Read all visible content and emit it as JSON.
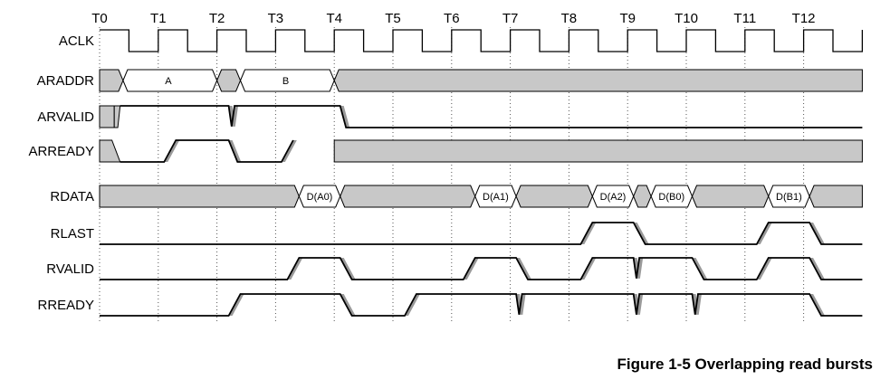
{
  "figure": {
    "caption": "Figure 1-5 Overlapping read bursts"
  },
  "time_markers": [
    "T0",
    "T1",
    "T2",
    "T3",
    "T4",
    "T5",
    "T6",
    "T7",
    "T8",
    "T9",
    "T10",
    "T11",
    "T12"
  ],
  "signals": [
    {
      "name": "ACLK",
      "type": "clock"
    },
    {
      "name": "ARADDR",
      "type": "bus",
      "segments": [
        {
          "from": 0,
          "to": 0.4,
          "kind": "invalid"
        },
        {
          "from": 0.4,
          "to": 2.0,
          "kind": "valid",
          "label": "A"
        },
        {
          "from": 2.0,
          "to": 2.4,
          "kind": "invalid"
        },
        {
          "from": 2.4,
          "to": 4.0,
          "kind": "valid",
          "label": "B"
        },
        {
          "from": 4.0,
          "to": 13.0,
          "kind": "invalid"
        }
      ]
    },
    {
      "name": "ARVALID",
      "type": "wave",
      "points": [
        [
          0,
          "x"
        ],
        [
          0.25,
          "x"
        ],
        [
          0.35,
          1
        ],
        [
          2.2,
          1
        ],
        [
          2.25,
          0.05
        ],
        [
          2.3,
          1
        ],
        [
          4.1,
          1
        ],
        [
          4.2,
          0
        ],
        [
          13,
          0
        ]
      ]
    },
    {
      "name": "ARREADY",
      "type": "wave",
      "points": [
        [
          0,
          "x"
        ],
        [
          0.35,
          0
        ],
        [
          1.1,
          0
        ],
        [
          1.3,
          1
        ],
        [
          2.2,
          1
        ],
        [
          2.35,
          0
        ],
        [
          3.1,
          0
        ],
        [
          3.3,
          1
        ],
        [
          4.0,
          "x"
        ],
        [
          13,
          "x"
        ]
      ]
    },
    {
      "name": "RDATA",
      "type": "bus",
      "segments": [
        {
          "from": 0,
          "to": 3.4,
          "kind": "invalid"
        },
        {
          "from": 3.4,
          "to": 4.1,
          "kind": "valid",
          "label": "D(A0)"
        },
        {
          "from": 4.1,
          "to": 6.4,
          "kind": "invalid"
        },
        {
          "from": 6.4,
          "to": 7.1,
          "kind": "valid",
          "label": "D(A1)"
        },
        {
          "from": 7.1,
          "to": 8.4,
          "kind": "invalid"
        },
        {
          "from": 8.4,
          "to": 9.1,
          "kind": "valid",
          "label": "D(A2)"
        },
        {
          "from": 9.1,
          "to": 9.4,
          "kind": "invalid"
        },
        {
          "from": 9.4,
          "to": 10.1,
          "kind": "valid",
          "label": "D(B0)"
        },
        {
          "from": 10.1,
          "to": 11.4,
          "kind": "invalid"
        },
        {
          "from": 11.4,
          "to": 12.1,
          "kind": "valid",
          "label": "D(B1)"
        },
        {
          "from": 12.1,
          "to": 13.0,
          "kind": "invalid"
        }
      ]
    },
    {
      "name": "RLAST",
      "type": "wave",
      "points": [
        [
          0,
          0
        ],
        [
          8.2,
          0
        ],
        [
          8.4,
          1
        ],
        [
          9.1,
          1
        ],
        [
          9.3,
          0
        ],
        [
          11.2,
          0
        ],
        [
          11.4,
          1
        ],
        [
          12.1,
          1
        ],
        [
          12.3,
          0
        ],
        [
          13,
          0
        ]
      ]
    },
    {
      "name": "RVALID",
      "type": "wave",
      "points": [
        [
          0,
          0
        ],
        [
          3.2,
          0
        ],
        [
          3.4,
          1
        ],
        [
          4.1,
          1
        ],
        [
          4.3,
          0
        ],
        [
          6.2,
          0
        ],
        [
          6.4,
          1
        ],
        [
          7.1,
          1
        ],
        [
          7.3,
          0
        ],
        [
          8.2,
          0
        ],
        [
          8.4,
          1
        ],
        [
          9.1,
          1
        ],
        [
          9.15,
          0.05
        ],
        [
          9.2,
          1
        ],
        [
          10.1,
          1
        ],
        [
          10.3,
          0
        ],
        [
          11.2,
          0
        ],
        [
          11.4,
          1
        ],
        [
          12.1,
          1
        ],
        [
          12.3,
          0
        ],
        [
          13,
          0
        ]
      ]
    },
    {
      "name": "RREADY",
      "type": "wave",
      "points": [
        [
          0,
          0
        ],
        [
          2.2,
          0
        ],
        [
          2.4,
          1
        ],
        [
          4.1,
          1
        ],
        [
          4.3,
          0
        ],
        [
          5.2,
          0
        ],
        [
          5.4,
          1
        ],
        [
          7.1,
          1
        ],
        [
          7.15,
          0.05
        ],
        [
          7.2,
          1
        ],
        [
          9.1,
          1
        ],
        [
          9.15,
          0.05
        ],
        [
          9.2,
          1
        ],
        [
          10.1,
          1
        ],
        [
          10.15,
          0.05
        ],
        [
          10.2,
          1
        ],
        [
          12.1,
          1
        ],
        [
          12.3,
          0
        ],
        [
          13,
          0
        ]
      ]
    }
  ]
}
